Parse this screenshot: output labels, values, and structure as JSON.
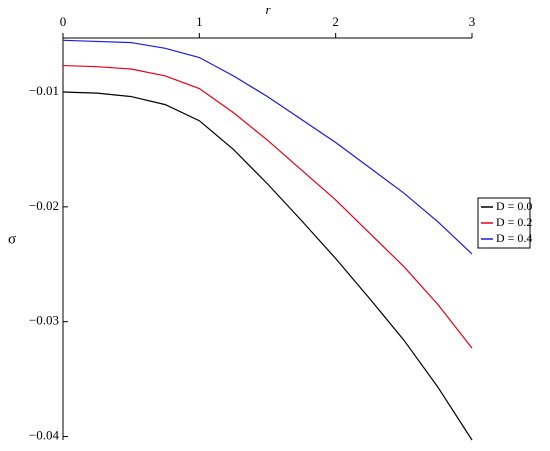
{
  "chart_data": {
    "type": "line",
    "x_label": "r",
    "y_label": "σ",
    "x": [
      0,
      0.25,
      0.5,
      0.75,
      1,
      1.25,
      1.5,
      1.75,
      2,
      2.25,
      2.5,
      2.75,
      3
    ],
    "series": [
      {
        "name": "D = 0.0",
        "color": "#000000",
        "values": [
          -0.01,
          -0.0101,
          -0.0104,
          -0.0111,
          -0.0125,
          -0.015,
          -0.018,
          -0.0212,
          -0.0245,
          -0.028,
          -0.0316,
          -0.0357,
          -0.0403
        ]
      },
      {
        "name": "D = 0.2",
        "color": "#e8001a",
        "values": [
          -0.0077,
          -0.0078,
          -0.008,
          -0.0086,
          -0.0097,
          -0.0118,
          -0.0142,
          -0.0168,
          -0.0194,
          -0.0223,
          -0.0252,
          -0.0285,
          -0.0323
        ]
      },
      {
        "name": "D = 0.4",
        "color": "#1c1cdc",
        "values": [
          -0.0055,
          -0.0056,
          -0.0057,
          -0.0062,
          -0.007,
          -0.0086,
          -0.0104,
          -0.0124,
          -0.0144,
          -0.0166,
          -0.0188,
          -0.0213,
          -0.0241
        ]
      }
    ],
    "xlim": [
      0,
      3
    ],
    "xticks": [
      0,
      1,
      2,
      3
    ],
    "ylim": [
      -0.0403,
      -0.0053
    ],
    "yticks": [
      {
        "value": -0.01,
        "label": "−0.01"
      },
      {
        "value": -0.02,
        "label": "−0.02"
      },
      {
        "value": -0.03,
        "label": "−0.03"
      },
      {
        "value": -0.04,
        "label": "−0.04"
      }
    ],
    "legend": "right"
  }
}
